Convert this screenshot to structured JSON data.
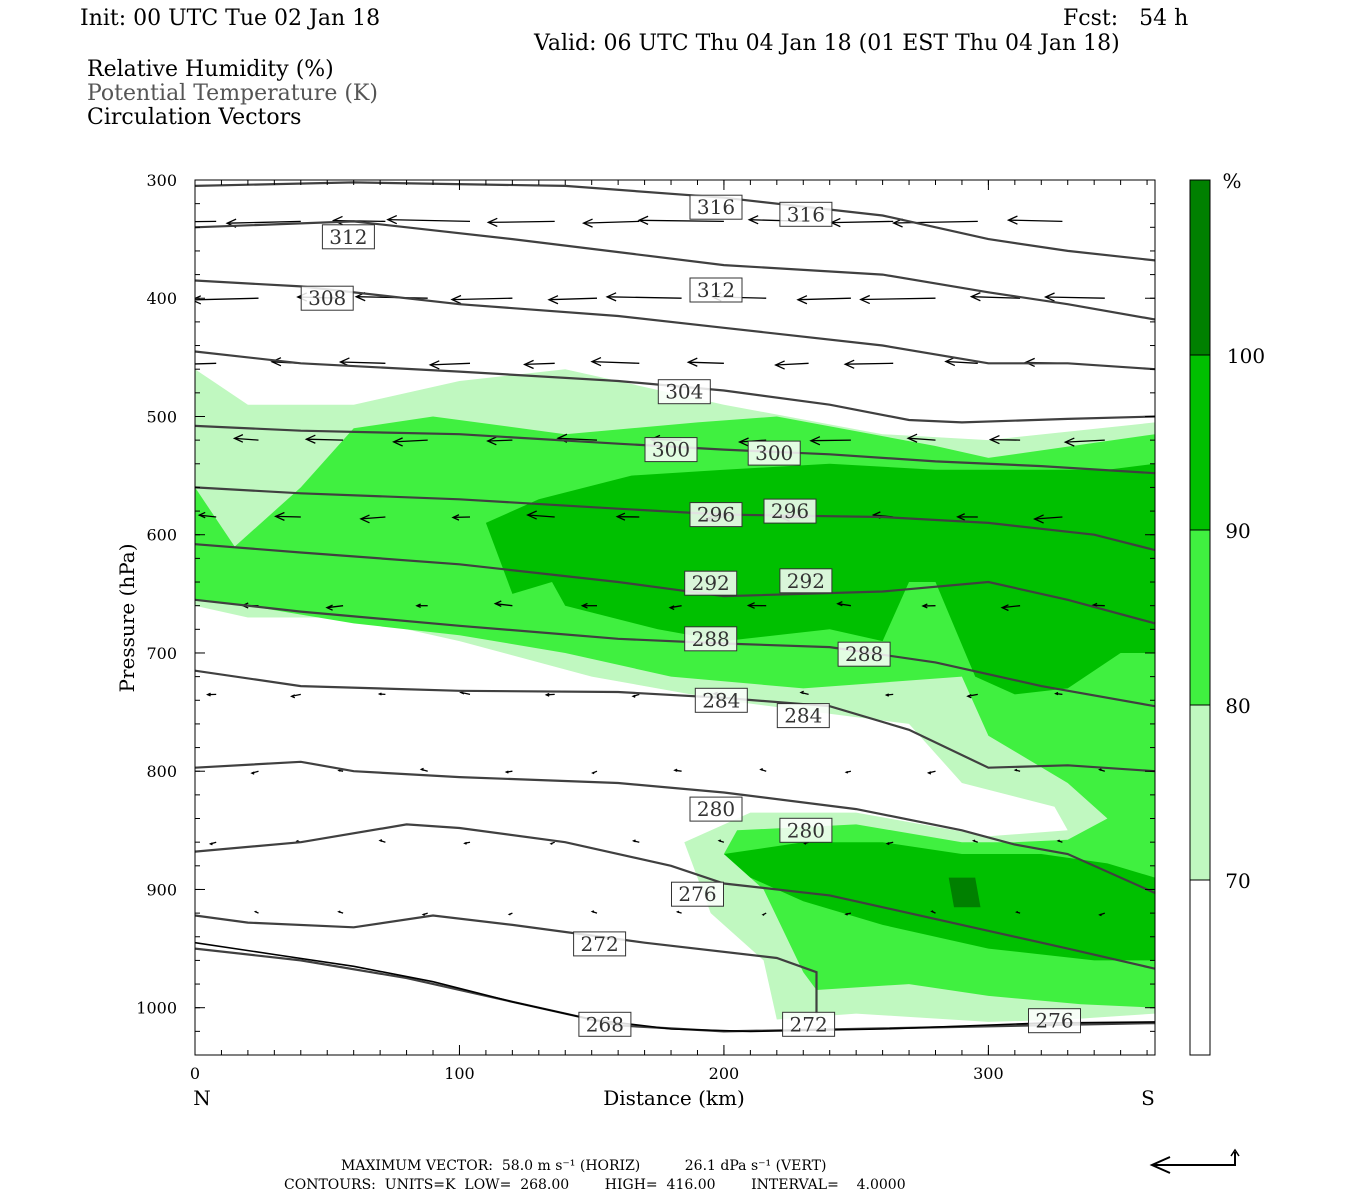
{
  "header": {
    "init": "Init: 00 UTC Tue 02 Jan 18",
    "fcst": "Fcst:   54 h",
    "valid": "Valid: 06 UTC Thu 04 Jan 18 (01 EST Thu 04 Jan 18)"
  },
  "fields": {
    "rh": "Relative Humidity (%)",
    "theta": "Potential Temperature (K)",
    "vectors": "Circulation Vectors"
  },
  "footer": {
    "max_vector": "MAXIMUM VECTOR:  58.0 m s⁻¹ (HORIZ)          26.1 dPa s⁻¹ (VERT)",
    "contours": "CONTOURS:  UNITS=K  LOW=  268.00        HIGH=  416.00        INTERVAL=    4.0000"
  },
  "colors": {
    "rh_70_80": "#c0f8c0",
    "rh_80_90": "#40f040",
    "rh_90_100": "#00c000",
    "rh_100_plus": "#008000",
    "contour": "#404040",
    "terrain": "#000000"
  },
  "chart_data": {
    "type": "cross-section",
    "xlabel": "Distance (km)",
    "ylabel": "Pressure (hPa)",
    "xlim": [
      0,
      363
    ],
    "ylim": [
      1040,
      300
    ],
    "x_ticks": [
      0,
      100,
      200,
      300
    ],
    "y_ticks": [
      300,
      400,
      500,
      600,
      700,
      800,
      900,
      1000
    ],
    "left_end_label": "N",
    "right_end_label": "S",
    "colorbar": {
      "unit": "%",
      "levels": [
        70,
        80,
        90,
        100
      ],
      "label_100": "100",
      "label_90": "90",
      "label_80": "80",
      "label_70": "70"
    },
    "rh_regions": [
      {
        "level": 70,
        "points": [
          [
            0,
            460
          ],
          [
            20,
            490
          ],
          [
            60,
            490
          ],
          [
            100,
            470
          ],
          [
            140,
            460
          ],
          [
            200,
            490
          ],
          [
            260,
            515
          ],
          [
            300,
            520
          ],
          [
            363,
            505
          ],
          [
            363,
            1005
          ],
          [
            330,
            1010
          ],
          [
            300,
            1012
          ],
          [
            250,
            1005
          ],
          [
            220,
            1010
          ],
          [
            215,
            960
          ],
          [
            195,
            920
          ],
          [
            185,
            860
          ],
          [
            210,
            835
          ],
          [
            250,
            835
          ],
          [
            300,
            855
          ],
          [
            330,
            850
          ],
          [
            325,
            830
          ],
          [
            290,
            810
          ],
          [
            270,
            760
          ],
          [
            200,
            740
          ],
          [
            150,
            720
          ],
          [
            100,
            690
          ],
          [
            60,
            670
          ],
          [
            20,
            670
          ],
          [
            0,
            660
          ]
        ]
      },
      {
        "level": 80,
        "points": [
          [
            0,
            560
          ],
          [
            15,
            610
          ],
          [
            40,
            560
          ],
          [
            60,
            510
          ],
          [
            90,
            500
          ],
          [
            140,
            515
          ],
          [
            190,
            505
          ],
          [
            220,
            500
          ],
          [
            280,
            525
          ],
          [
            300,
            535
          ],
          [
            363,
            515
          ],
          [
            363,
            1000
          ],
          [
            335,
            997
          ],
          [
            300,
            990
          ],
          [
            270,
            980
          ],
          [
            235,
            985
          ],
          [
            230,
            970
          ],
          [
            215,
            900
          ],
          [
            200,
            870
          ],
          [
            205,
            850
          ],
          [
            250,
            845
          ],
          [
            290,
            860
          ],
          [
            310,
            860
          ],
          [
            330,
            858
          ],
          [
            345,
            840
          ],
          [
            330,
            810
          ],
          [
            300,
            770
          ],
          [
            290,
            720
          ],
          [
            230,
            730
          ],
          [
            180,
            720
          ],
          [
            140,
            700
          ],
          [
            100,
            685
          ],
          [
            60,
            675
          ],
          [
            20,
            660
          ],
          [
            0,
            655
          ]
        ]
      },
      {
        "level": 90,
        "points": [
          [
            110,
            590
          ],
          [
            130,
            570
          ],
          [
            165,
            550
          ],
          [
            200,
            545
          ],
          [
            240,
            540
          ],
          [
            280,
            545
          ],
          [
            300,
            545
          ],
          [
            320,
            545
          ],
          [
            345,
            545
          ],
          [
            363,
            540
          ],
          [
            363,
            700
          ],
          [
            350,
            700
          ],
          [
            330,
            730
          ],
          [
            310,
            735
          ],
          [
            295,
            720
          ],
          [
            280,
            640
          ],
          [
            270,
            640
          ],
          [
            260,
            690
          ],
          [
            240,
            680
          ],
          [
            200,
            690
          ],
          [
            175,
            680
          ],
          [
            140,
            660
          ],
          [
            135,
            640
          ],
          [
            120,
            650
          ]
        ]
      },
      {
        "level": 90,
        "points": [
          [
            200,
            870
          ],
          [
            230,
            860
          ],
          [
            260,
            860
          ],
          [
            290,
            870
          ],
          [
            320,
            870
          ],
          [
            345,
            878
          ],
          [
            363,
            890
          ],
          [
            363,
            960
          ],
          [
            340,
            960
          ],
          [
            300,
            950
          ],
          [
            260,
            930
          ],
          [
            230,
            910
          ],
          [
            210,
            890
          ]
        ]
      },
      {
        "level": 100,
        "points": [
          [
            285,
            890
          ],
          [
            295,
            890
          ],
          [
            297,
            915
          ],
          [
            287,
            915
          ]
        ]
      }
    ],
    "isentropes": [
      {
        "value": 316,
        "points": [
          [
            0,
            305
          ],
          [
            60,
            302
          ],
          [
            140,
            305
          ],
          [
            200,
            315
          ],
          [
            260,
            330
          ],
          [
            300,
            350
          ],
          [
            330,
            360
          ],
          [
            363,
            368
          ]
        ]
      },
      {
        "value": 312,
        "points": [
          [
            0,
            340
          ],
          [
            60,
            335
          ],
          [
            120,
            350
          ],
          [
            200,
            372
          ],
          [
            260,
            380
          ],
          [
            300,
            395
          ],
          [
            330,
            405
          ],
          [
            363,
            418
          ]
        ]
      },
      {
        "value": 308,
        "points": [
          [
            0,
            385
          ],
          [
            40,
            390
          ],
          [
            100,
            405
          ],
          [
            160,
            415
          ],
          [
            200,
            425
          ],
          [
            260,
            440
          ],
          [
            300,
            455
          ],
          [
            330,
            455
          ],
          [
            363,
            460
          ]
        ]
      },
      {
        "value": 304,
        "points": [
          [
            0,
            445
          ],
          [
            40,
            455
          ],
          [
            100,
            462
          ],
          [
            160,
            470
          ],
          [
            200,
            478
          ],
          [
            240,
            490
          ],
          [
            270,
            503
          ],
          [
            290,
            505
          ],
          [
            330,
            502
          ],
          [
            363,
            500
          ]
        ]
      },
      {
        "value": 300,
        "points": [
          [
            0,
            508
          ],
          [
            40,
            512
          ],
          [
            100,
            515
          ],
          [
            160,
            523
          ],
          [
            200,
            528
          ],
          [
            240,
            532
          ],
          [
            280,
            538
          ],
          [
            320,
            542
          ],
          [
            363,
            548
          ]
        ]
      },
      {
        "value": 296,
        "points": [
          [
            0,
            560
          ],
          [
            40,
            565
          ],
          [
            100,
            570
          ],
          [
            160,
            578
          ],
          [
            200,
            583
          ],
          [
            260,
            585
          ],
          [
            300,
            590
          ],
          [
            340,
            600
          ],
          [
            363,
            613
          ]
        ]
      },
      {
        "value": 292,
        "points": [
          [
            0,
            608
          ],
          [
            40,
            615
          ],
          [
            100,
            625
          ],
          [
            160,
            640
          ],
          [
            200,
            652
          ],
          [
            260,
            648
          ],
          [
            300,
            640
          ],
          [
            330,
            655
          ],
          [
            363,
            675
          ]
        ]
      },
      {
        "value": 288,
        "points": [
          [
            0,
            655
          ],
          [
            40,
            665
          ],
          [
            100,
            677
          ],
          [
            160,
            688
          ],
          [
            200,
            692
          ],
          [
            240,
            695
          ],
          [
            280,
            708
          ],
          [
            320,
            728
          ],
          [
            363,
            745
          ]
        ]
      },
      {
        "value": 284,
        "points": [
          [
            0,
            715
          ],
          [
            40,
            728
          ],
          [
            100,
            732
          ],
          [
            160,
            733
          ],
          [
            200,
            738
          ],
          [
            240,
            745
          ],
          [
            270,
            765
          ],
          [
            300,
            797
          ],
          [
            330,
            795
          ],
          [
            363,
            800
          ]
        ]
      },
      {
        "value": 280,
        "points": [
          [
            0,
            797
          ],
          [
            40,
            792
          ],
          [
            60,
            800
          ],
          [
            100,
            805
          ],
          [
            160,
            810
          ],
          [
            200,
            818
          ],
          [
            250,
            832
          ],
          [
            290,
            850
          ],
          [
            310,
            862
          ],
          [
            330,
            870
          ],
          [
            363,
            903
          ]
        ]
      },
      {
        "value": 276,
        "points": [
          [
            0,
            868
          ],
          [
            40,
            860
          ],
          [
            80,
            845
          ],
          [
            100,
            848
          ],
          [
            140,
            860
          ],
          [
            180,
            880
          ],
          [
            200,
            895
          ],
          [
            240,
            905
          ],
          [
            290,
            930
          ],
          [
            330,
            950
          ],
          [
            363,
            967
          ]
        ]
      },
      {
        "value": 272,
        "points": [
          [
            0,
            922
          ],
          [
            20,
            928
          ],
          [
            60,
            932
          ],
          [
            90,
            922
          ],
          [
            120,
            930
          ],
          [
            170,
            945
          ],
          [
            220,
            958
          ],
          [
            235,
            970
          ],
          [
            235,
            1005
          ]
        ]
      },
      {
        "value": 268,
        "points": [
          [
            0,
            950
          ],
          [
            40,
            960
          ],
          [
            80,
            975
          ],
          [
            120,
            995
          ],
          [
            160,
            1015
          ],
          [
            200,
            1020
          ],
          [
            363,
            1013
          ]
        ]
      }
    ],
    "isentrope_labels": [
      {
        "text": "316",
        "x": 197,
        "p": 323
      },
      {
        "text": "316",
        "x": 231,
        "p": 329
      },
      {
        "text": "312",
        "x": 58,
        "p": 348
      },
      {
        "text": "312",
        "x": 197,
        "p": 393
      },
      {
        "text": "308",
        "x": 50,
        "p": 400
      },
      {
        "text": "304",
        "x": 185,
        "p": 479
      },
      {
        "text": "300",
        "x": 180,
        "p": 528
      },
      {
        "text": "300",
        "x": 219,
        "p": 531
      },
      {
        "text": "296",
        "x": 197,
        "p": 583
      },
      {
        "text": "296",
        "x": 225,
        "p": 580
      },
      {
        "text": "292",
        "x": 195,
        "p": 641
      },
      {
        "text": "292",
        "x": 231,
        "p": 639
      },
      {
        "text": "288",
        "x": 195,
        "p": 688
      },
      {
        "text": "288",
        "x": 253,
        "p": 701
      },
      {
        "text": "284",
        "x": 199,
        "p": 740
      },
      {
        "text": "284",
        "x": 230,
        "p": 753
      },
      {
        "text": "280",
        "x": 197,
        "p": 832
      },
      {
        "text": "280",
        "x": 231,
        "p": 850
      },
      {
        "text": "276",
        "x": 190,
        "p": 904
      },
      {
        "text": "272",
        "x": 153,
        "p": 946
      },
      {
        "text": "268",
        "x": 155,
        "p": 1014
      },
      {
        "text": "272",
        "x": 232,
        "p": 1014
      },
      {
        "text": "276",
        "x": 325,
        "p": 1011
      }
    ],
    "terrain": [
      [
        0,
        945
      ],
      [
        30,
        955
      ],
      [
        60,
        965
      ],
      [
        90,
        978
      ],
      [
        120,
        995
      ],
      [
        150,
        1010
      ],
      [
        180,
        1018
      ],
      [
        210,
        1020
      ],
      [
        260,
        1018
      ],
      [
        320,
        1013
      ],
      [
        363,
        1012
      ]
    ]
  }
}
